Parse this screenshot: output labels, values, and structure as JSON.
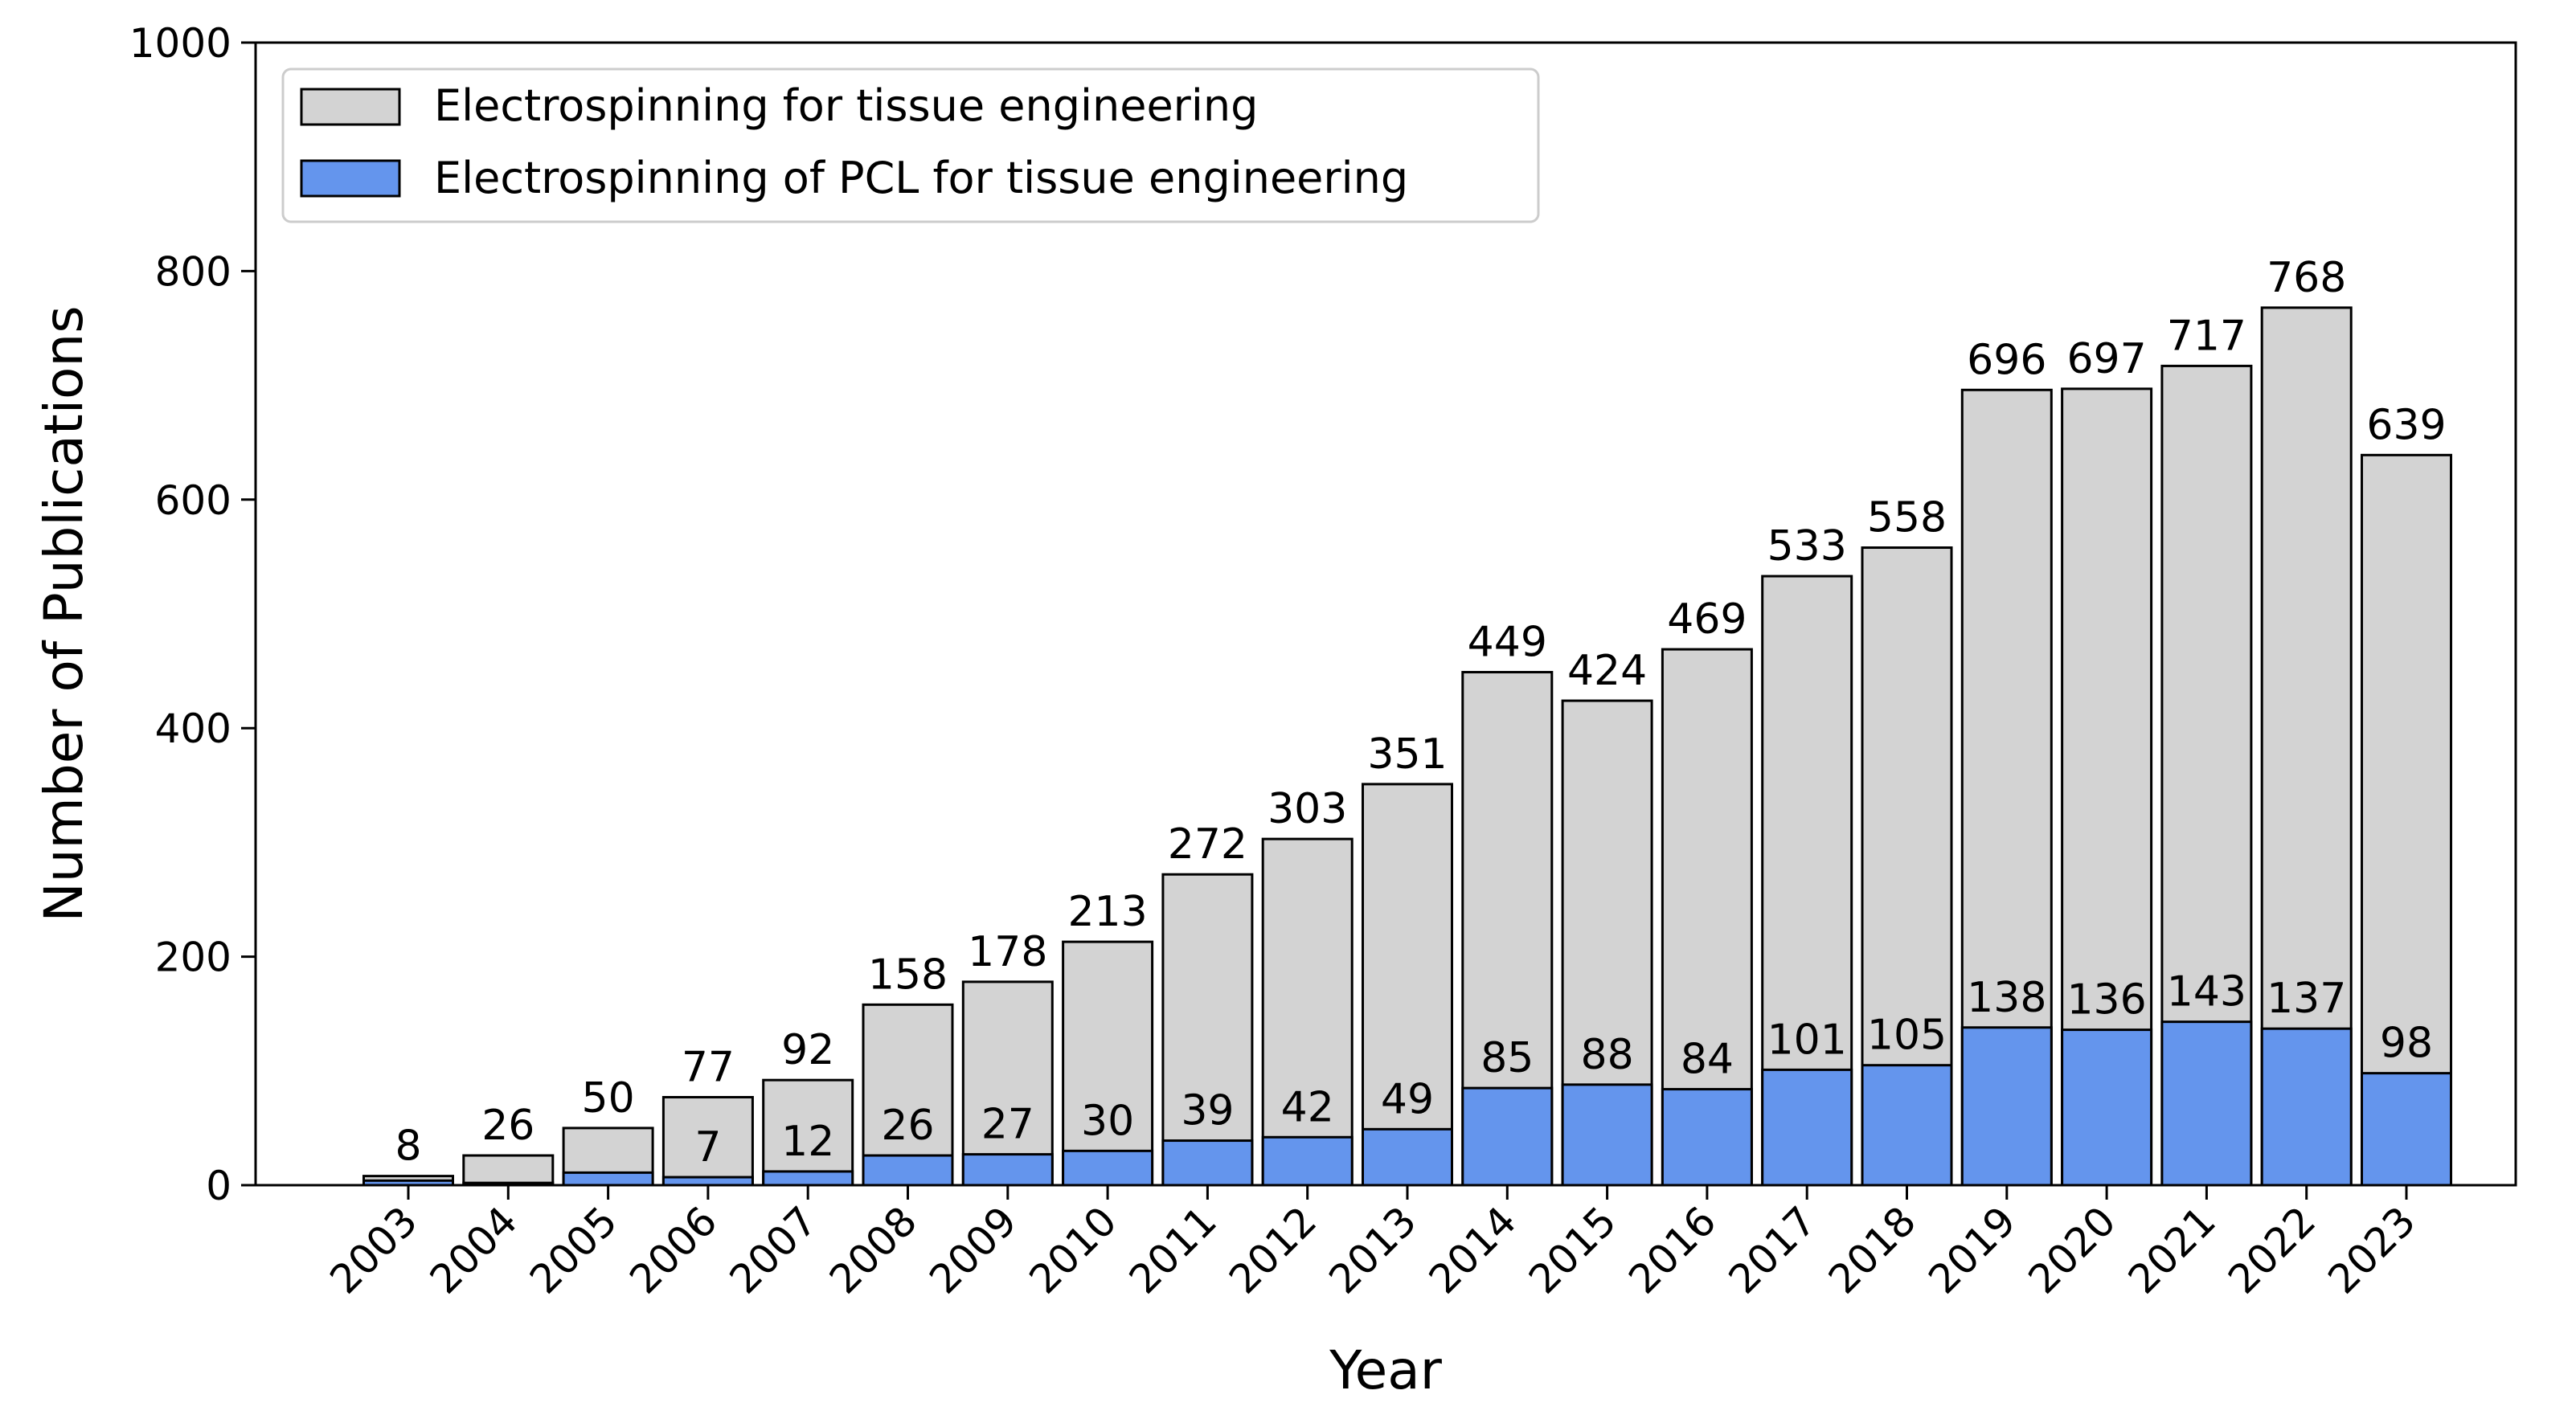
{
  "chart_data": {
    "type": "bar",
    "stacking": "overlay",
    "categories": [
      "2003",
      "2004",
      "2005",
      "2006",
      "2007",
      "2008",
      "2009",
      "2010",
      "2011",
      "2012",
      "2013",
      "2014",
      "2015",
      "2016",
      "2017",
      "2018",
      "2019",
      "2020",
      "2021",
      "2022",
      "2023"
    ],
    "series": [
      {
        "name": "Electrospinning for tissue engineering",
        "color": "#d3d3d3",
        "values": [
          8,
          26,
          50,
          77,
          92,
          158,
          178,
          213,
          272,
          303,
          351,
          449,
          424,
          469,
          533,
          558,
          696,
          697,
          717,
          768,
          639
        ],
        "labels": [
          "8",
          "26",
          "50",
          "77",
          "92",
          "158",
          "178",
          "213",
          "272",
          "303",
          "351",
          "449",
          "424",
          "469",
          "533",
          "558",
          "696",
          "697",
          "717",
          "768",
          "639"
        ]
      },
      {
        "name": "Electrospinning of PCL for tissue engineering",
        "color": "#6495ed",
        "values": [
          4,
          2,
          11,
          7,
          12,
          26,
          27,
          30,
          39,
          42,
          49,
          85,
          88,
          84,
          101,
          105,
          138,
          136,
          143,
          137,
          98
        ],
        "labels": [
          "",
          "",
          "",
          "7",
          "12",
          "26",
          "27",
          "30",
          "39",
          "42",
          "49",
          "85",
          "88",
          "84",
          "101",
          "105",
          "138",
          "136",
          "143",
          "137",
          "98"
        ]
      }
    ],
    "xlabel": "Year",
    "ylabel": "Number of Publications",
    "ylim": [
      0,
      1000
    ],
    "yticks": [
      "0",
      "200",
      "400",
      "600",
      "800",
      "1000"
    ],
    "grid": false,
    "legend_position": "top-left"
  }
}
